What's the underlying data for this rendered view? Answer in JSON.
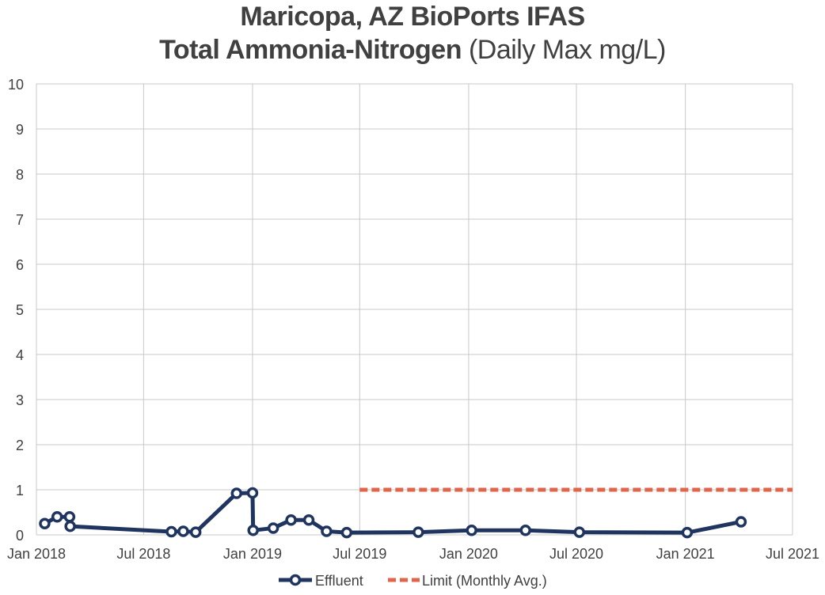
{
  "title_line1": "Maricopa, AZ BioPorts IFAS",
  "title_line2_bold": "Total Ammonia-Nitrogen",
  "title_line2_normal": " (Daily Max mg/L)",
  "chart_data": {
    "type": "line",
    "title": "Maricopa, AZ BioPorts IFAS Total Ammonia-Nitrogen (Daily Max mg/L)",
    "xlabel": "",
    "ylabel": "",
    "x_axis": "date",
    "xlim": [
      "2018-01-01",
      "2021-07-01"
    ],
    "ylim": [
      0,
      10
    ],
    "grid": true,
    "legend_position": "bottom",
    "x_tick_labels": [
      "Jan 2018",
      "Jul 2018",
      "Jan 2019",
      "Jul 2019",
      "Jan 2020",
      "Jul 2020",
      "Jan 2021",
      "Jul 2021"
    ],
    "x_ticks": [
      "2018-01-01",
      "2018-07-01",
      "2019-01-01",
      "2019-07-01",
      "2020-01-01",
      "2020-07-01",
      "2021-01-01",
      "2021-07-01"
    ],
    "y_tick_labels": [
      "0",
      "1",
      "2",
      "3",
      "4",
      "5",
      "6",
      "7",
      "8",
      "9",
      "10"
    ],
    "series": [
      {
        "name": "Effluent",
        "color": "#1f3560",
        "style": "solid-markers",
        "x": [
          "2018-01-15",
          "2018-02-05",
          "2018-02-26",
          "2018-02-27",
          "2018-08-17",
          "2018-09-06",
          "2018-09-27",
          "2018-12-05",
          "2019-01-01",
          "2019-01-02",
          "2019-02-05",
          "2019-03-07",
          "2019-04-06",
          "2019-05-06",
          "2019-06-09",
          "2019-10-08",
          "2020-01-06",
          "2020-04-06",
          "2020-07-06",
          "2021-01-04",
          "2021-04-05"
        ],
        "y": [
          0.25,
          0.4,
          0.4,
          0.19,
          0.07,
          0.08,
          0.06,
          0.92,
          0.93,
          0.1,
          0.15,
          0.33,
          0.33,
          0.08,
          0.05,
          0.06,
          0.1,
          0.1,
          0.06,
          0.05,
          0.29
        ]
      },
      {
        "name": "Limit (Monthly Avg.)",
        "color": "#e0654a",
        "style": "dashed",
        "x": [
          "2019-07-01",
          "2021-07-01"
        ],
        "y": [
          1,
          1
        ]
      }
    ]
  }
}
